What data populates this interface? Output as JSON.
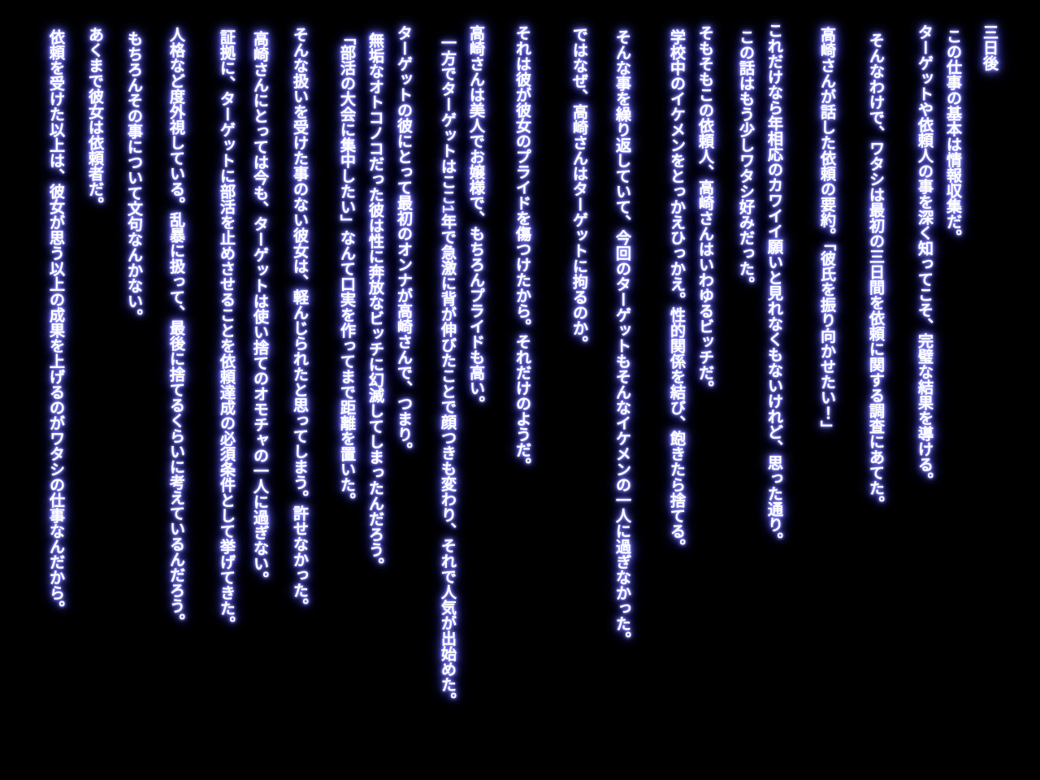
{
  "page": {
    "background_color": "#000000",
    "text_color": "#ffffff",
    "glow_color": "#7b7bff",
    "language": "ja",
    "writing_direction": "vertical-rl"
  },
  "narration": {
    "paragraphs": [
      {
        "text": "三日後"
      },
      {
        "text": "この仕事の基本は情報収集だ。"
      },
      {
        "text": "ターゲットや依頼人の事を深く知ってこそ、完璧な結果を導ける。"
      },
      {
        "text": "そんなわけで、ワタシは最初の三日間を依頼に関する調査にあてた。"
      },
      {
        "text": "高崎さんが話した依頼の要約。「彼氏を振り向かせたい！」"
      },
      {
        "text": "これだけなら年相応のカワイイ願いと見れなくもないけれど、思った通り。"
      },
      {
        "text": "この話はもう少しワタシ好みだった。"
      },
      {
        "text": "そもそもこの依頼人、高崎さんはいわゆるビッチだ。"
      },
      {
        "text": "学校中のイケメンをとっかえひっかえ。性的関係を結び、飽きたら捨てる。"
      },
      {
        "text": "そんな事を繰り返していて、今回のターゲットもそんなイケメンの一人に過ぎなかった。"
      },
      {
        "text": "ではなぜ、高崎さんはターゲットに拘るのか。"
      },
      {
        "text": "それは彼が彼女のプライドを傷つけたから。それだけのようだ。"
      },
      {
        "text": "高崎さんは美人でお嬢様で、もちろんプライドも高い。"
      },
      {
        "text": "一方でターゲットはここ1年で急激に背が伸びたことで顔つきも変わり、それで人気が出始めた。"
      },
      {
        "text": "ターゲットの彼にとって最初のオンナが高崎さんで、つまり。"
      },
      {
        "text": "無垢なオトコノコだった彼は性に奔放なビッチに幻滅してしまったんだろう。"
      },
      {
        "text": "「部活の大会に集中したい」なんて口実を作ってまで距離を置いた。"
      },
      {
        "text": "そんな扱いを受けた事のない彼女は、軽んじられたと思ってしまう。許せなかった。"
      },
      {
        "text": "高崎さんにとっては今も、ターゲットは使い捨てのオモチャの一人に過ぎない。"
      },
      {
        "text": "証拠に、ターゲットに部活を止めさせることを依頼達成の必須条件として挙げてきた。"
      },
      {
        "text": "人格など度外視している。乱暴に扱って、最後に捨てるくらいに考えているんだろう。"
      },
      {
        "text": "もちろんその事について文句なんかない。"
      },
      {
        "text": "あくまで彼女は依頼者だ。"
      },
      {
        "text": "依頼を受けた以上は、彼女が思う以上の成果を上げるのがワタシの仕事なんだから。"
      }
    ]
  }
}
